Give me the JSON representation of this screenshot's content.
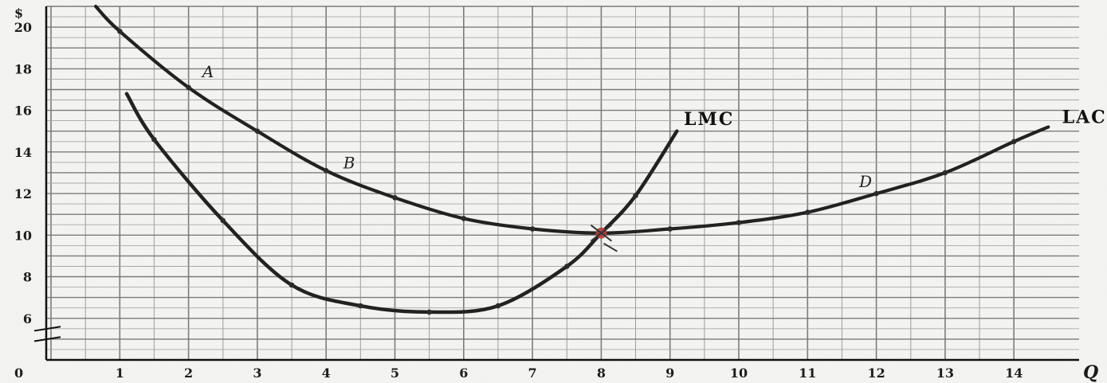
{
  "chart_data": {
    "type": "line",
    "ylabel": "$",
    "xlabel": "Q",
    "origin_label": "0",
    "xlim": [
      0,
      14
    ],
    "ylim": [
      4,
      21
    ],
    "x_ticks": [
      1,
      2,
      3,
      4,
      5,
      6,
      7,
      8,
      9,
      10,
      11,
      12,
      13,
      14
    ],
    "y_ticks": [
      6,
      8,
      10,
      12,
      14,
      16,
      18,
      20
    ],
    "grid": true,
    "series": [
      {
        "name": "LAC",
        "points": [
          [
            0.65,
            21.0
          ],
          [
            1.0,
            19.8
          ],
          [
            2.0,
            17.1
          ],
          [
            3.0,
            15.0
          ],
          [
            4.0,
            13.1
          ],
          [
            5.0,
            11.8
          ],
          [
            6.0,
            10.8
          ],
          [
            7.0,
            10.3
          ],
          [
            8.0,
            10.1
          ],
          [
            9.0,
            10.3
          ],
          [
            10.0,
            10.6
          ],
          [
            11.0,
            11.1
          ],
          [
            12.0,
            12.0
          ],
          [
            13.0,
            13.0
          ],
          [
            14.0,
            14.5
          ],
          [
            14.5,
            15.2
          ]
        ]
      },
      {
        "name": "LMC",
        "points": [
          [
            1.1,
            16.8
          ],
          [
            1.5,
            14.6
          ],
          [
            2.5,
            10.7
          ],
          [
            3.5,
            7.6
          ],
          [
            4.5,
            6.6
          ],
          [
            5.5,
            6.3
          ],
          [
            6.5,
            6.6
          ],
          [
            7.5,
            8.5
          ],
          [
            8.0,
            10.1
          ],
          [
            8.5,
            11.9
          ],
          [
            9.1,
            15.0
          ]
        ]
      }
    ],
    "annotations": [
      {
        "text": "A",
        "x": 2.2,
        "y": 17.6
      },
      {
        "text": "B",
        "x": 4.25,
        "y": 13.2
      },
      {
        "text": "D",
        "x": 11.75,
        "y": 12.3
      },
      {
        "text": "LMC",
        "x": 9.2,
        "y": 15.3
      },
      {
        "text": "LAC",
        "x": 14.7,
        "y": 15.4
      }
    ]
  }
}
